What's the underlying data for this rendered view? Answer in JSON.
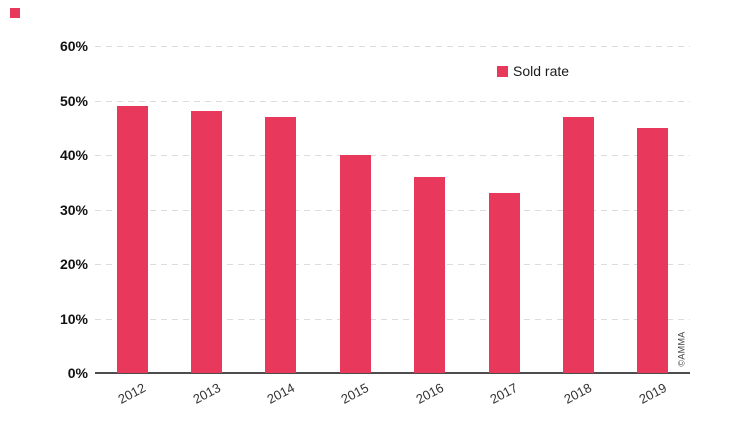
{
  "decor": {
    "corner_square_color": "#e8395c"
  },
  "credit": {
    "text": "©AMMA"
  },
  "colors": {
    "bar": "#e8395c",
    "gridline": "#dcdcdc",
    "axis_line": "#4d4d4d",
    "tick_text": "#111111",
    "year_text": "#333333"
  },
  "chart_data": {
    "type": "bar",
    "title": "",
    "xlabel": "",
    "ylabel": "",
    "categories": [
      "2012",
      "2013",
      "2014",
      "2015",
      "2016",
      "2017",
      "2018",
      "2019"
    ],
    "series": [
      {
        "name": "Sold rate",
        "color": "#e8395c",
        "values": [
          49,
          48,
          47,
          40,
          36,
          33,
          47,
          45
        ]
      }
    ],
    "y_ticks": [
      "0%",
      "10%",
      "20%",
      "30%",
      "40%",
      "50%",
      "60%"
    ],
    "ylim": [
      0,
      60
    ],
    "grid": "horizontal-dashed",
    "legend": {
      "label": "Sold rate",
      "position": "top-center-right"
    }
  }
}
